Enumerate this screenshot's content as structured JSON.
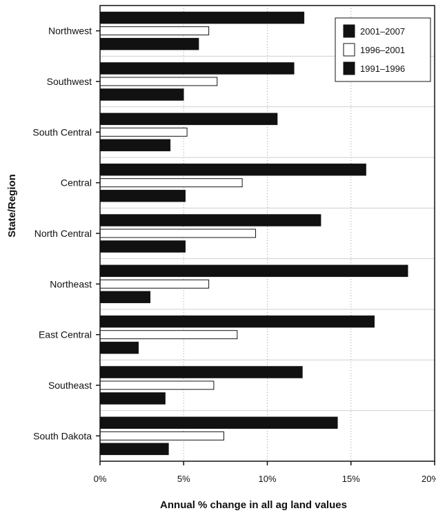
{
  "chart_data": {
    "type": "bar",
    "orientation": "horizontal",
    "categories": [
      "Northwest",
      "Southwest",
      "South Central",
      "Central",
      "North Central",
      "Northeast",
      "East Central",
      "Southeast",
      "South Dakota"
    ],
    "series": [
      {
        "name": "2001–2007",
        "color": "#111111",
        "values": [
          12.2,
          11.6,
          10.6,
          15.9,
          13.2,
          18.4,
          16.4,
          12.1,
          14.2
        ]
      },
      {
        "name": "1996–2001",
        "color": "#ffffff",
        "values": [
          6.5,
          7.0,
          5.2,
          8.5,
          9.3,
          6.5,
          8.2,
          6.8,
          7.4
        ]
      },
      {
        "name": "1991–1996",
        "color": "#111111",
        "values": [
          5.9,
          5.0,
          4.2,
          5.1,
          5.1,
          3.0,
          2.3,
          3.9,
          4.1
        ]
      }
    ],
    "xlabel": "Annual % change in all ag land values",
    "ylabel": "State/Region",
    "xlim": [
      0,
      20
    ],
    "xticks": [
      {
        "value": 0,
        "label": "0%"
      },
      {
        "value": 5,
        "label": "5%"
      },
      {
        "value": 10,
        "label": "10%"
      },
      {
        "value": 15,
        "label": "15%"
      },
      {
        "value": 20,
        "label": "20%"
      }
    ],
    "grid": "vertical dotted",
    "legend": "top-right"
  }
}
